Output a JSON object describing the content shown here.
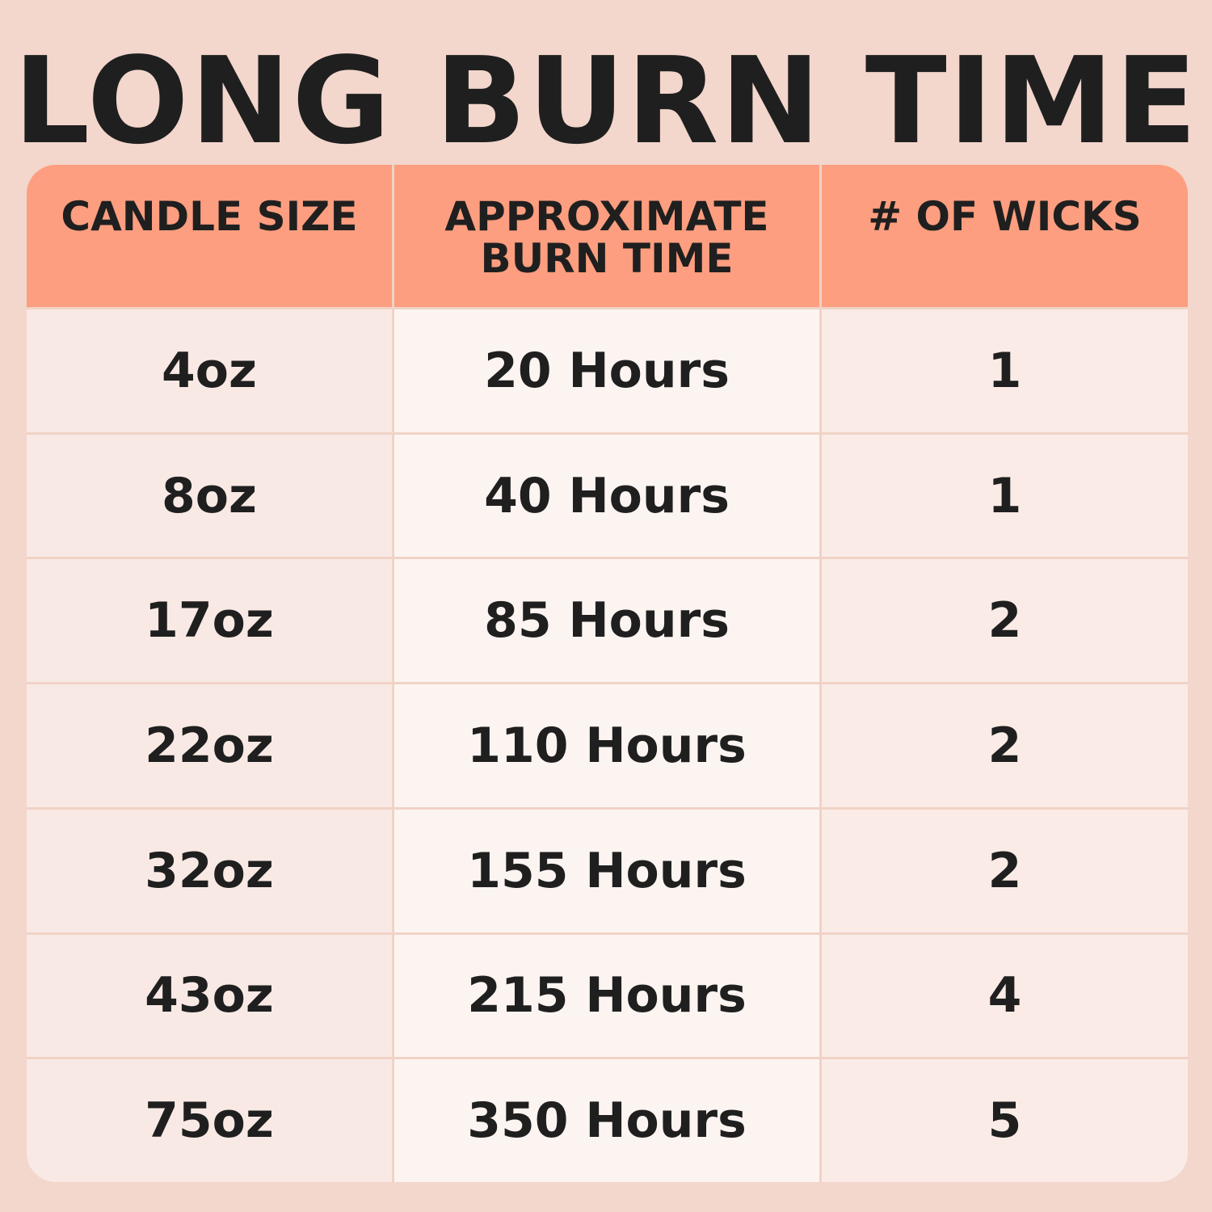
{
  "title": "LONG BURN TIME",
  "headers": [
    "CANDLE SIZE",
    "APPROXIMATE BURN TIME",
    "# OF WICKS"
  ],
  "rows": [
    [
      "4oz",
      "20 Hours",
      "1"
    ],
    [
      "8oz",
      "40 Hours",
      "1"
    ],
    [
      "17oz",
      "85 Hours",
      "2"
    ],
    [
      "22oz",
      "110 Hours",
      "2"
    ],
    [
      "32oz",
      "155 Hours",
      "2"
    ],
    [
      "43oz",
      "215 Hours",
      "4"
    ],
    [
      "75oz",
      "350 Hours",
      "5"
    ]
  ],
  "colors": {
    "background": "#f3d6cc",
    "header": "#fc9e7f",
    "text": "#1f1f1f"
  }
}
